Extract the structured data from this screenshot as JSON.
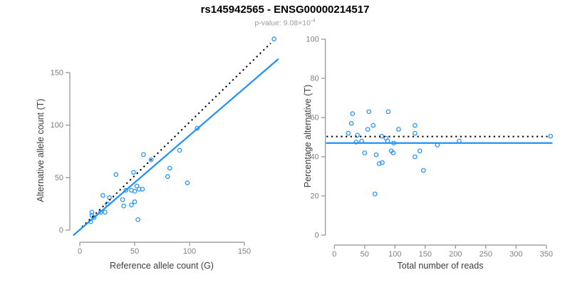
{
  "header": {
    "title": "rs145942565 - ENSG00000214517",
    "pvalue_label": "p-value: 9.08×10",
    "pvalue_exponent": "-4"
  },
  "colors": {
    "accent_blue": "#1e90ff",
    "reference_line_black": "#000000",
    "axis_gray": "#8f8f8f",
    "tick_label_gray": "#808080",
    "axis_title_gray": "#3d3d3d",
    "subtitle_gray": "#9b9b9b"
  },
  "chart_data": [
    {
      "panel": "allele-counts-scatter",
      "type": "scatter",
      "title": "",
      "xlabel": "Reference allele count (G)",
      "ylabel": "Alternative allele count (T)",
      "xticks": [
        0,
        50,
        100,
        150
      ],
      "yticks": [
        0,
        50,
        100,
        150
      ],
      "xlim": [
        -9,
        184
      ],
      "ylim": [
        -5,
        186
      ],
      "grid": false,
      "legend": "none",
      "marker": "open-circle",
      "points": [
        [
          10,
          8
        ],
        [
          11,
          14
        ],
        [
          11,
          17
        ],
        [
          13,
          12
        ],
        [
          19,
          17
        ],
        [
          23,
          17
        ],
        [
          21,
          33
        ],
        [
          25,
          25
        ],
        [
          27,
          31
        ],
        [
          33,
          53
        ],
        [
          39,
          29
        ],
        [
          40,
          23
        ],
        [
          42,
          38
        ],
        [
          47,
          38
        ],
        [
          47,
          24
        ],
        [
          49,
          55
        ],
        [
          50,
          37
        ],
        [
          50,
          27
        ],
        [
          52,
          42
        ],
        [
          53,
          10
        ],
        [
          54,
          39
        ],
        [
          57,
          39
        ],
        [
          58,
          72
        ],
        [
          65,
          67
        ],
        [
          80,
          51
        ],
        [
          82,
          59
        ],
        [
          91,
          76
        ],
        [
          98,
          45
        ],
        [
          107,
          97
        ],
        [
          177,
          182
        ]
      ],
      "lines": [
        {
          "role": "identity-line",
          "style": "dotted",
          "color": "#000000",
          "x1": 2,
          "y1": 3,
          "x2": 174,
          "y2": 178
        },
        {
          "role": "fit-line",
          "style": "solid",
          "color": "#1e90ff",
          "x1": -6,
          "y1": -5,
          "x2": 181,
          "y2": 163
        }
      ]
    },
    {
      "panel": "percentage-vs-reads-scatter",
      "type": "scatter",
      "title": "",
      "xlabel": "Total number of reads",
      "ylabel": "Percentage alternative (T)",
      "xticks": [
        0,
        50,
        100,
        150,
        200,
        250,
        300,
        350
      ],
      "yticks": [
        0,
        20,
        40,
        60,
        80,
        100
      ],
      "xlim": [
        -14,
        364
      ],
      "ylim": [
        -4,
        101
      ],
      "grid": false,
      "legend": "none",
      "marker": "open-circle",
      "points": [
        [
          23,
          52
        ],
        [
          28,
          57
        ],
        [
          30,
          62
        ],
        [
          36,
          47.5
        ],
        [
          38,
          51
        ],
        [
          45,
          48
        ],
        [
          50,
          42
        ],
        [
          55,
          54
        ],
        [
          57,
          63
        ],
        [
          64,
          56
        ],
        [
          67,
          21
        ],
        [
          69,
          41
        ],
        [
          74,
          36.5
        ],
        [
          78,
          50.5
        ],
        [
          79,
          37
        ],
        [
          85,
          49.5
        ],
        [
          88,
          48
        ],
        [
          89,
          63
        ],
        [
          94,
          43
        ],
        [
          97,
          42
        ],
        [
          98,
          47
        ],
        [
          106,
          54
        ],
        [
          133,
          56
        ],
        [
          133,
          52
        ],
        [
          133,
          40
        ],
        [
          141,
          43
        ],
        [
          147,
          33
        ],
        [
          170,
          46
        ],
        [
          206,
          48
        ],
        [
          357,
          50.5
        ]
      ],
      "lines": [
        {
          "role": "expected-50-percent-line",
          "style": "dotted",
          "color": "#000000",
          "x1": -13,
          "y1": 50.3,
          "x2": 352,
          "y2": 50.3
        },
        {
          "role": "mean-percentage-line",
          "style": "solid",
          "color": "#1e90ff",
          "x1": -14,
          "y1": 47,
          "x2": 360,
          "y2": 47
        }
      ]
    }
  ]
}
